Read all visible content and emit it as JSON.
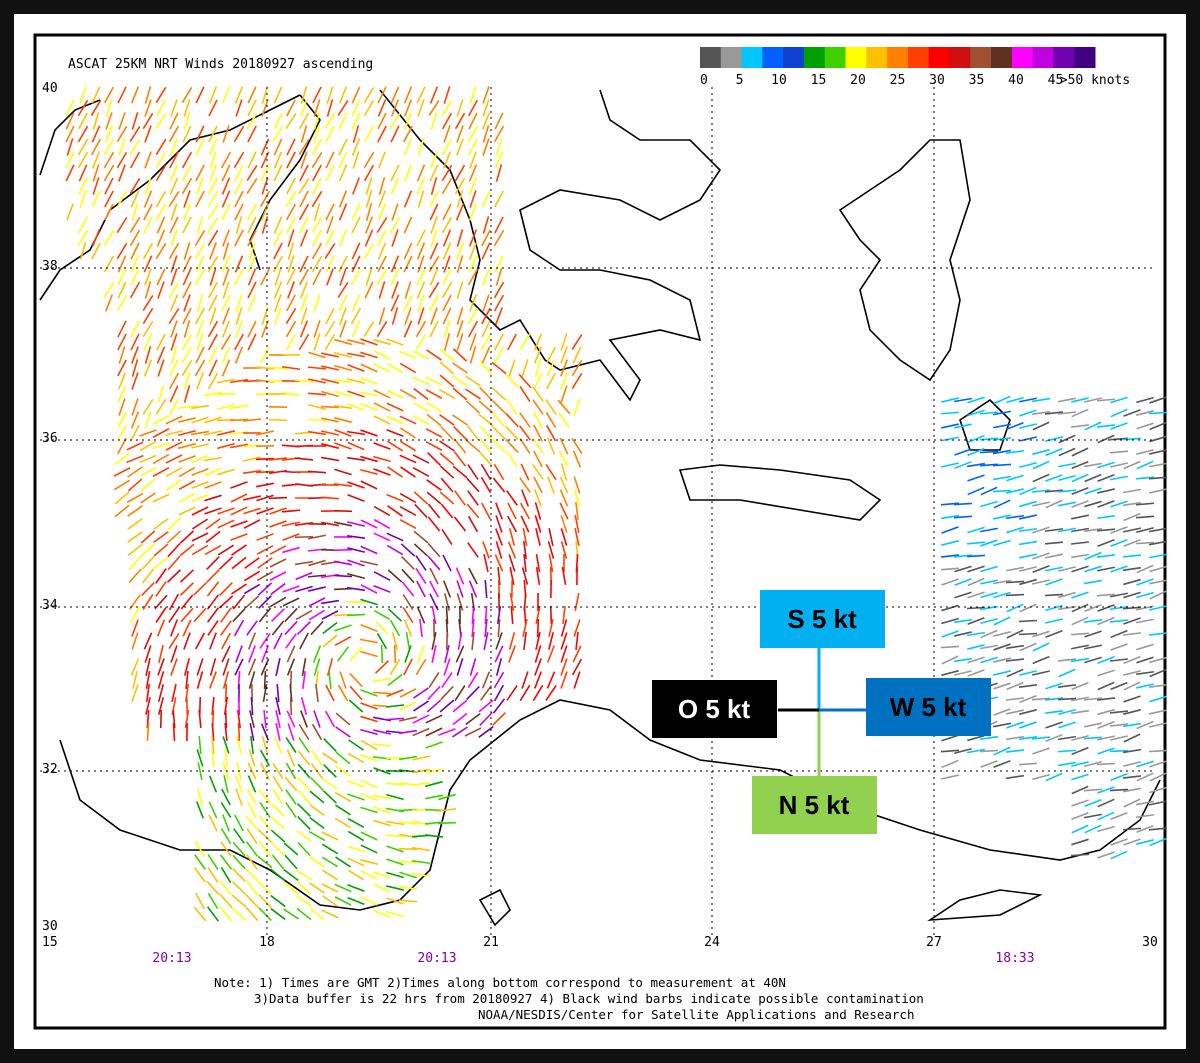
{
  "header": {
    "title": "ASCAT 25KM NRT Winds 20180927 ascending"
  },
  "legend": {
    "labels": [
      "0",
      "5",
      "10",
      "15",
      "20",
      "25",
      "30",
      "35",
      "40",
      "45",
      ">50 knots"
    ],
    "colors": [
      "#555555",
      "#999999",
      "#00c8ff",
      "#0060ff",
      "#1040d0",
      "#00a000",
      "#40d000",
      "#ffff00",
      "#ffc000",
      "#ff8000",
      "#ff4000",
      "#ff0000",
      "#d01010",
      "#a05030",
      "#603020",
      "#ff00ff",
      "#c000e0",
      "#7000b0",
      "#400080"
    ]
  },
  "axes": {
    "lat": [
      "40",
      "38",
      "36",
      "34",
      "32",
      "30"
    ],
    "lon": [
      "15",
      "18",
      "21",
      "24",
      "27",
      "30"
    ]
  },
  "times": [
    "20:13",
    "20:13",
    "18:33"
  ],
  "notes": [
    "Note: 1) Times are GMT 2)Times along bottom correspond to measurement at 40N",
    "3)Data buffer is 22 hrs from 20180927 4) Black wind barbs indicate possible contamination",
    "NOAA/NESDIS/Center for Satellite Applications and Research"
  ],
  "annotations": [
    {
      "label": "S 5 kt",
      "color": "#00b0f0",
      "text_color": "#000000"
    },
    {
      "label": "W 5 kt",
      "color": "#0070c0",
      "text_color": "#000000"
    },
    {
      "label": "O 5 kt",
      "color": "#000000",
      "text_color": "#ffffff"
    },
    {
      "label": "N 5 kt",
      "color": "#92d050",
      "text_color": "#000000"
    }
  ]
}
